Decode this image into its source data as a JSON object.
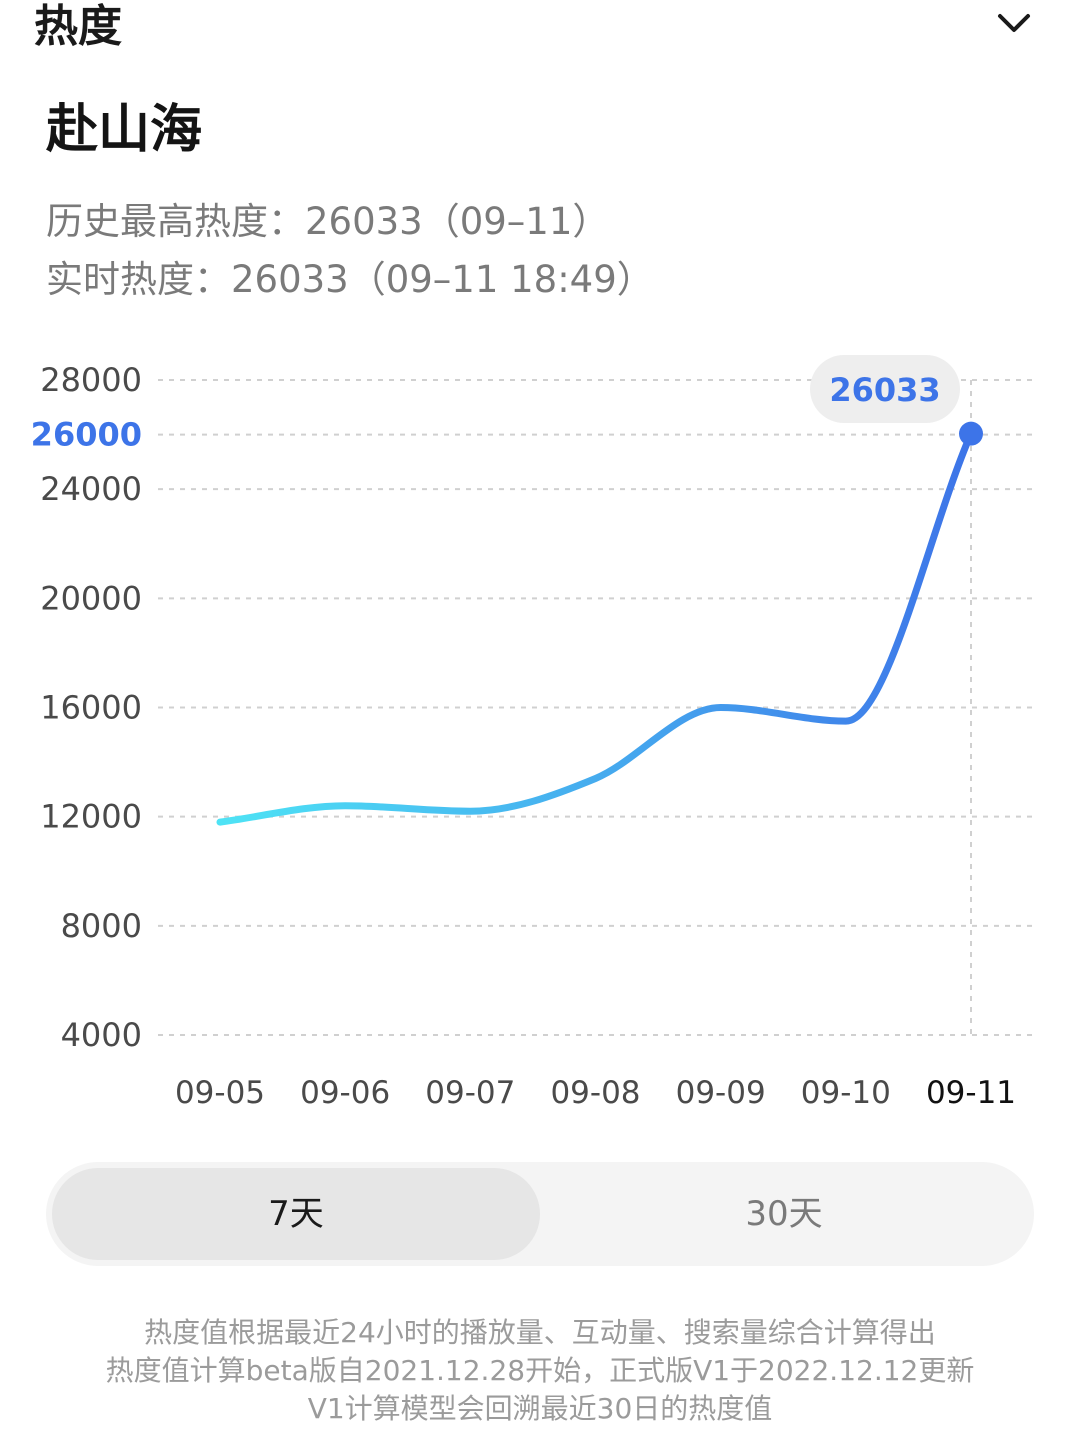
{
  "header": {
    "title": "热度",
    "collapse_icon": "chevron-down-icon"
  },
  "topic": {
    "name": "赴山海",
    "history_peak": "历史最高热度：26033（09–11）",
    "realtime": "实时热度：26033（09–11 18:49）"
  },
  "chart_data": {
    "type": "line",
    "x": [
      "09-05",
      "09-06",
      "09-07",
      "09-08",
      "09-09",
      "09-10",
      "09-11"
    ],
    "series": [
      {
        "values": [
          11800,
          12400,
          12200,
          13400,
          16000,
          15500,
          26033
        ]
      }
    ],
    "y_ticks": [
      4000,
      8000,
      12000,
      16000,
      20000,
      24000,
      26000,
      28000
    ],
    "highlighted_y_tick": 26000,
    "ylim": [
      4000,
      28000
    ],
    "grid": true,
    "gridline_style": "dashed",
    "tooltip": {
      "x": "09-11",
      "value": "26033"
    },
    "line_color_start": "#4ee3f5",
    "line_color_end": "#3d74e8",
    "highlight_color": "#3d74e8"
  },
  "range_selector": {
    "options": [
      "7天",
      "30天"
    ],
    "selected": "7天"
  },
  "footnote": {
    "line1": "热度值根据最近24小时的播放量、互动量、搜索量综合计算得出",
    "line2": "热度值计算beta版自2021.12.28开始，正式版V1于2022.12.12更新",
    "line3": "V1计算模型会回溯最近30日的热度值"
  }
}
